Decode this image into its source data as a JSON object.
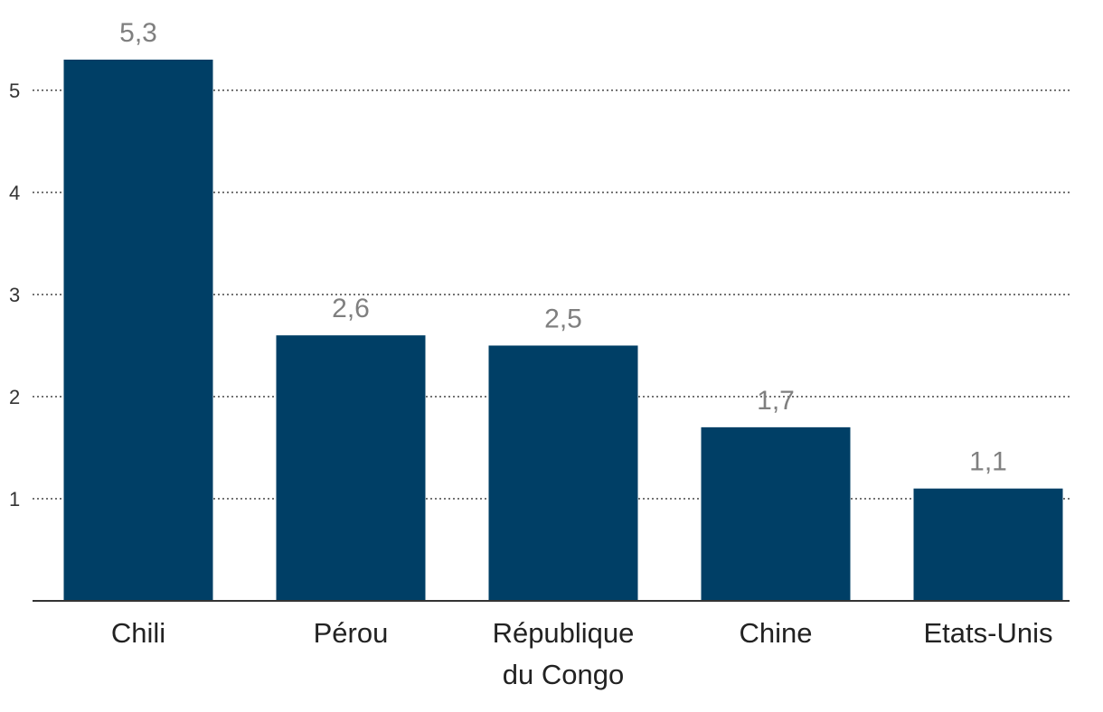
{
  "chart_data": {
    "type": "bar",
    "categories": [
      [
        "Chili"
      ],
      [
        "Pérou"
      ],
      [
        "République",
        "du Congo"
      ],
      [
        "Chine"
      ],
      [
        "Etats-Unis"
      ]
    ],
    "values": [
      5.3,
      2.6,
      2.5,
      1.7,
      1.1
    ],
    "value_labels": [
      "5,3",
      "2,6",
      "2,5",
      "1,7",
      "1,1"
    ],
    "yticks": [
      1,
      2,
      3,
      4,
      5
    ],
    "ytick_labels": [
      "1",
      "2",
      "3",
      "4",
      "5"
    ],
    "ylim": [
      0,
      5.3
    ],
    "grid": true,
    "title": "",
    "xlabel": "",
    "ylabel": "",
    "colors": {
      "bar": "#003f66",
      "value_label": "#7f7f7f",
      "grid": "#555555"
    }
  }
}
